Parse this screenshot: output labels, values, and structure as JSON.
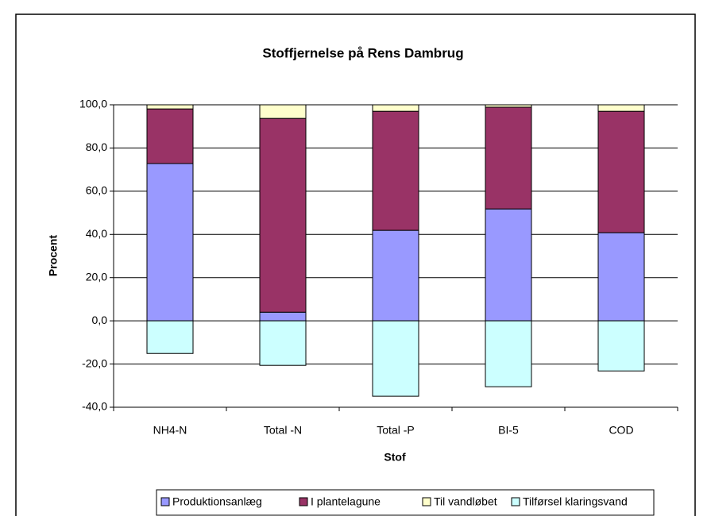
{
  "chart_data": {
    "type": "stacked-bar",
    "title": "Stoffjernelse  på Rens Dambrug",
    "x_label": "Stof",
    "y_label": "Procent",
    "categories": [
      "NH4-N",
      "Total -N",
      "Total -P",
      "BI-5",
      "COD"
    ],
    "series": [
      {
        "name": "Produktionsanlæg",
        "color": "#9999ff",
        "values": [
          72.8,
          4.0,
          41.9,
          51.8,
          40.8
        ]
      },
      {
        "name": "I plantelagune",
        "color": "#993366",
        "values": [
          25.3,
          89.7,
          55.1,
          47.1,
          56.2
        ]
      },
      {
        "name": "Til vandløbet",
        "color": "#ffffcc",
        "values": [
          1.9,
          6.3,
          3.0,
          1.1,
          3.0
        ]
      },
      {
        "name": "Tilførsel klaringsvand",
        "color": "#ccffff",
        "values": [
          -15.1,
          -20.6,
          -34.9,
          -30.5,
          -23.2
        ]
      }
    ],
    "ylim": [
      -40,
      100
    ],
    "yticks": [
      {
        "value": -40,
        "label": "-40,0"
      },
      {
        "value": -20,
        "label": "-20,0"
      },
      {
        "value": 0,
        "label": "0,0"
      },
      {
        "value": 20,
        "label": "20,0"
      },
      {
        "value": 40,
        "label": "40,0"
      },
      {
        "value": 60,
        "label": "60,0"
      },
      {
        "value": 80,
        "label": "80,0"
      },
      {
        "value": 100,
        "label": "100,0"
      }
    ],
    "grid": true
  }
}
